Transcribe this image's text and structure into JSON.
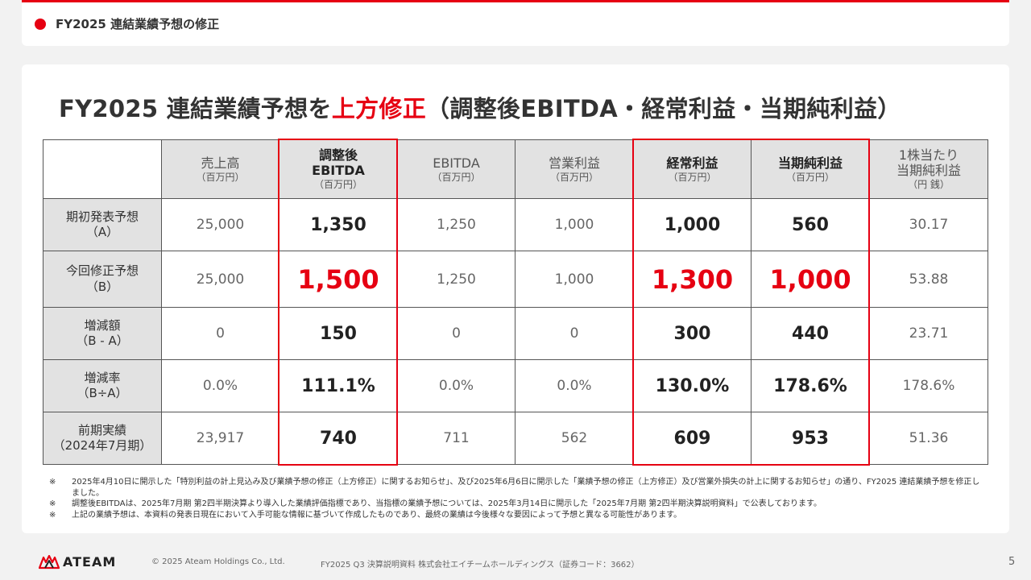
{
  "header": {
    "title": "FY2025 連結業績予想の修正"
  },
  "main": {
    "title_prefix": "FY2025 連結業績予想を",
    "title_highlight": "上方修正",
    "title_suffix": "（調整後EBITDA・経常利益・当期純利益）"
  },
  "table": {
    "columns": [
      {
        "label": "売上高",
        "unit": "（百万円）"
      },
      {
        "label": "調整後\nEBITDA",
        "unit": "（百万円）"
      },
      {
        "label": "EBITDA",
        "unit": "（百万円）"
      },
      {
        "label": "営業利益",
        "unit": "（百万円）"
      },
      {
        "label": "経常利益",
        "unit": "（百万円）"
      },
      {
        "label": "当期純利益",
        "unit": "（百万円）"
      },
      {
        "label": "1株当たり\n当期純利益",
        "unit": "（円 銭）"
      }
    ],
    "rows": [
      {
        "label_line1": "期初発表予想",
        "label_line2": "（A）",
        "values": [
          "25,000",
          "1,350",
          "1,250",
          "1,000",
          "1,000",
          "560",
          "30.17"
        ]
      },
      {
        "label_line1": "今回修正予想",
        "label_line2": "（B）",
        "values": [
          "25,000",
          "1,500",
          "1,250",
          "1,000",
          "1,300",
          "1,000",
          "53.88"
        ]
      },
      {
        "label_line1": "増減額",
        "label_line2": "（B - A）",
        "values": [
          "0",
          "150",
          "0",
          "0",
          "300",
          "440",
          "23.71"
        ]
      },
      {
        "label_line1": "増減率",
        "label_line2": "（B÷A）",
        "values": [
          "0.0%",
          "111.1%",
          "0.0%",
          "0.0%",
          "130.0%",
          "178.6%",
          "178.6%"
        ]
      },
      {
        "label_line1": "前期実績",
        "label_line2": "（2024年7月期）",
        "values": [
          "23,917",
          "740",
          "711",
          "562",
          "609",
          "953",
          "51.36"
        ]
      }
    ]
  },
  "notes": [
    {
      "mark": "※",
      "text": "2025年4月10日に開示した「特別利益の計上見込み及び業績予想の修正（上方修正）に関するお知らせ」、及び2025年6月6日に開示した「業績予想の修正（上方修正）及び営業外損失の計上に関するお知らせ」の通り、FY2025 連結業績予想を修正しました。"
    },
    {
      "mark": "※",
      "text": "調整後EBITDAは、2025年7月期 第2四半期決算より導入した業績評価指標であり、当指標の業績予想については、2025年3月14日に開示した「2025年7月期 第2四半期決算説明資料」で公表しております。"
    },
    {
      "mark": "※",
      "text": "上記の業績予想は、本資料の発表日現在において入手可能な情報に基づいて作成したものであり、最終の業績は今後様々な要因によって予想と異なる可能性があります。"
    }
  ],
  "footer": {
    "brand": "ATEAM",
    "copyright": "© 2025 Ateam Holdings Co., Ltd.",
    "doc": "FY2025 Q3 決算説明資料 株式会社エイチームホールディングス（証券コード：3662）",
    "page": "5"
  },
  "colors": {
    "accent": "#e60012",
    "header_fill": "#e2e2e2"
  }
}
